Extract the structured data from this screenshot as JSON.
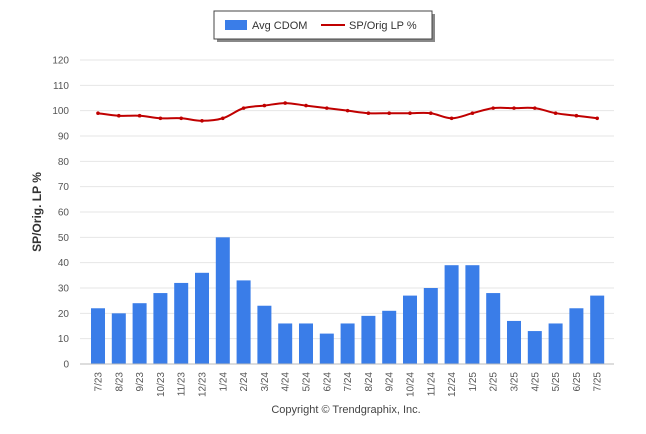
{
  "chart_data": {
    "type": "bar",
    "categories": [
      "7/23",
      "8/23",
      "9/23",
      "10/23",
      "11/23",
      "12/23",
      "1/24",
      "2/24",
      "3/24",
      "4/24",
      "5/24",
      "6/24",
      "7/24",
      "8/24",
      "9/24",
      "10/24",
      "11/24",
      "12/24",
      "1/25",
      "2/25",
      "3/25",
      "4/25",
      "5/25",
      "6/25",
      "7/25"
    ],
    "series": [
      {
        "name": "Avg CDOM",
        "type": "bar",
        "color": "#3a7de8",
        "values": [
          22,
          20,
          24,
          28,
          32,
          36,
          50,
          33,
          23,
          16,
          16,
          12,
          16,
          19,
          21,
          27,
          30,
          39,
          39,
          28,
          17,
          13,
          16,
          22,
          27
        ]
      },
      {
        "name": "SP/Orig LP %",
        "type": "line",
        "color": "#c00000",
        "values": [
          99,
          98,
          98,
          97,
          97,
          96,
          97,
          101,
          102,
          103,
          102,
          101,
          100,
          99,
          99,
          99,
          99,
          97,
          99,
          101,
          101,
          101,
          99,
          98,
          97
        ]
      }
    ],
    "ylabel": "SP/Orig. LP %",
    "ylim": [
      0,
      120
    ],
    "yticks": [
      0,
      10,
      20,
      30,
      40,
      50,
      60,
      70,
      80,
      90,
      100,
      110,
      120
    ],
    "grid": true,
    "legend_position": "top-center"
  },
  "footer": {
    "credit": "Copyright © Trendgraphix, Inc."
  }
}
